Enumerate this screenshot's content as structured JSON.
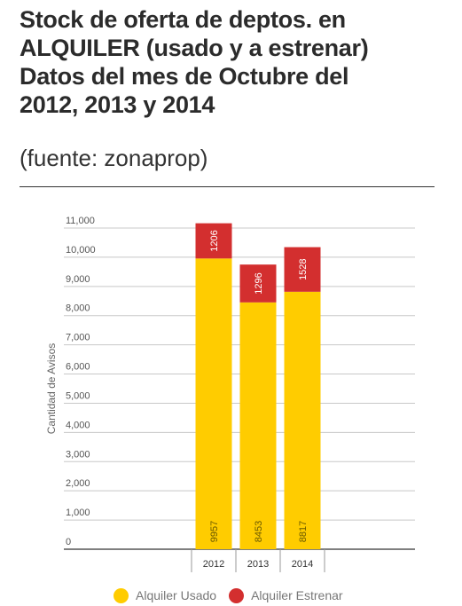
{
  "title_lines": [
    "Stock de oferta de deptos. en",
    "ALQUILER (usado y a estrenar)",
    "Datos del mes de Octubre del",
    "2012, 2013 y 2014"
  ],
  "source": "(fuente: zonaprop)",
  "chart_data": {
    "type": "bar",
    "stacked": true,
    "categories": [
      "2012",
      "2013",
      "2014"
    ],
    "series": [
      {
        "name": "Alquiler Usado",
        "values": [
          9957,
          8453,
          8817
        ],
        "color": "#ffcc00"
      },
      {
        "name": "Alquiler Estrenar",
        "values": [
          1206,
          1296,
          1528
        ],
        "color": "#d32f2f"
      }
    ],
    "ylabel": "Cantidad de Avisos",
    "ylim": [
      0,
      11000
    ],
    "yticks": [
      "0",
      "1,000",
      "2,000",
      "3,000",
      "4,000",
      "5,000",
      "6,000",
      "7,000",
      "8,000",
      "9,000",
      "10,000",
      "11,000"
    ],
    "grid": true,
    "legend_position": "bottom"
  }
}
